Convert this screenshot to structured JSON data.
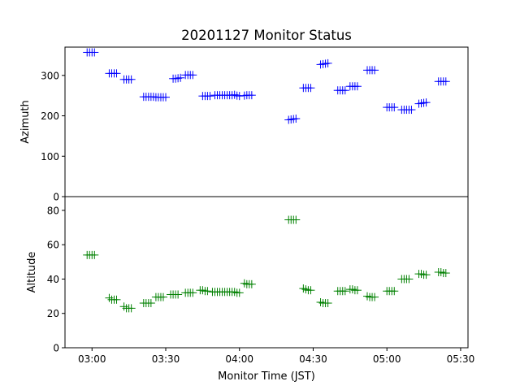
{
  "chart_data": [
    {
      "type": "scatter",
      "title": "20201127 Monitor Status",
      "xlabel": "",
      "ylabel": "Azimuth",
      "ylim": [
        0,
        370
      ],
      "yticks": [
        0,
        100,
        200,
        300
      ],
      "marker": "+",
      "color": "#0000ff",
      "series": [
        {
          "x": [
            "02:58",
            "02:59",
            "03:00",
            "03:01",
            "03:07",
            "03:08",
            "03:09",
            "03:10",
            "03:13",
            "03:14",
            "03:15",
            "03:16",
            "03:21",
            "03:22",
            "03:23",
            "03:24",
            "03:25",
            "03:26",
            "03:27",
            "03:28",
            "03:29",
            "03:30",
            "03:33",
            "03:34",
            "03:35",
            "03:36",
            "03:38",
            "03:39",
            "03:40",
            "03:41",
            "03:45",
            "03:46",
            "03:47",
            "03:48",
            "03:50",
            "03:51",
            "03:52",
            "03:53",
            "03:54",
            "03:55",
            "03:56",
            "03:57",
            "03:58",
            "03:59",
            "04:00",
            "04:02",
            "04:03",
            "04:04",
            "04:05",
            "04:20",
            "04:21",
            "04:22",
            "04:23",
            "04:26",
            "04:27",
            "04:28",
            "04:29",
            "04:33",
            "04:34",
            "04:35",
            "04:36",
            "04:40",
            "04:41",
            "04:42",
            "04:43",
            "04:45",
            "04:46",
            "04:47",
            "04:48",
            "04:52",
            "04:53",
            "04:54",
            "04:55",
            "05:00",
            "05:01",
            "05:02",
            "05:03",
            "05:06",
            "05:07",
            "05:08",
            "05:09",
            "05:10",
            "05:13",
            "05:14",
            "05:15",
            "05:16",
            "05:21",
            "05:22",
            "05:23",
            "05:24"
          ],
          "y": [
            357,
            357,
            357,
            357,
            305,
            305,
            305,
            305,
            290,
            290,
            290,
            290,
            247,
            247,
            247,
            247,
            247,
            246,
            246,
            246,
            246,
            246,
            292,
            292,
            293,
            294,
            301,
            301,
            301,
            301,
            249,
            249,
            249,
            249,
            251,
            251,
            251,
            251,
            251,
            251,
            251,
            251,
            252,
            250,
            249,
            250,
            251,
            251,
            251,
            190,
            191,
            192,
            193,
            269,
            269,
            269,
            269,
            327,
            328,
            329,
            330,
            263,
            263,
            263,
            263,
            273,
            273,
            273,
            273,
            313,
            313,
            313,
            313,
            221,
            221,
            221,
            221,
            215,
            215,
            215,
            215,
            215,
            230,
            231,
            232,
            233,
            285,
            285,
            285,
            285
          ]
        }
      ]
    },
    {
      "type": "scatter",
      "title": "",
      "xlabel": "Monitor Time (JST)",
      "ylabel": "Altitude",
      "ylim": [
        0,
        88
      ],
      "yticks": [
        0,
        20,
        40,
        60,
        80
      ],
      "xlim": [
        "02:49",
        "05:33"
      ],
      "xticks": [
        "03:00",
        "03:30",
        "04:00",
        "04:30",
        "05:00",
        "05:30"
      ],
      "marker": "+",
      "color": "#008000",
      "series": [
        {
          "x": [
            "02:58",
            "02:59",
            "03:00",
            "03:01",
            "03:07",
            "03:08",
            "03:09",
            "03:10",
            "03:13",
            "03:14",
            "03:15",
            "03:16",
            "03:21",
            "03:22",
            "03:23",
            "03:24",
            "03:26",
            "03:27",
            "03:28",
            "03:29",
            "03:32",
            "03:33",
            "03:34",
            "03:35",
            "03:38",
            "03:39",
            "03:40",
            "03:41",
            "03:44",
            "03:45",
            "03:46",
            "03:47",
            "03:49",
            "03:50",
            "03:51",
            "03:52",
            "03:53",
            "03:54",
            "03:55",
            "03:56",
            "03:57",
            "03:58",
            "03:59",
            "04:00",
            "04:02",
            "04:03",
            "04:04",
            "04:05",
            "04:20",
            "04:21",
            "04:22",
            "04:23",
            "04:26",
            "04:27",
            "04:28",
            "04:29",
            "04:33",
            "04:34",
            "04:35",
            "04:36",
            "04:40",
            "04:41",
            "04:42",
            "04:43",
            "04:45",
            "04:46",
            "04:47",
            "04:48",
            "04:52",
            "04:53",
            "04:54",
            "04:55",
            "05:00",
            "05:01",
            "05:02",
            "05:03",
            "05:06",
            "05:07",
            "05:08",
            "05:09",
            "05:13",
            "05:14",
            "05:15",
            "05:16",
            "05:21",
            "05:22",
            "05:23",
            "05:24"
          ],
          "y": [
            54,
            54,
            54,
            54,
            29,
            28,
            28,
            28,
            24,
            23,
            23,
            23,
            26,
            26,
            26,
            26,
            29.5,
            29.5,
            29.5,
            29.5,
            31,
            31,
            31,
            31,
            32,
            32,
            32,
            32,
            33.5,
            33.5,
            33,
            33,
            32.5,
            32.5,
            32.5,
            32.5,
            32.5,
            32.5,
            32.5,
            32.5,
            32.5,
            32.5,
            32,
            32,
            37.5,
            37,
            37,
            37,
            74.5,
            74.5,
            74.5,
            74.5,
            34.5,
            34,
            33.5,
            33.5,
            26.5,
            26,
            26,
            26,
            33,
            33,
            33,
            33,
            34,
            34,
            33.5,
            33.5,
            30,
            29.5,
            29.5,
            29.5,
            33,
            33,
            33,
            33,
            40,
            40,
            40,
            40,
            43,
            43,
            42.5,
            42.5,
            44,
            44,
            43.5,
            43.5
          ]
        }
      ]
    }
  ]
}
